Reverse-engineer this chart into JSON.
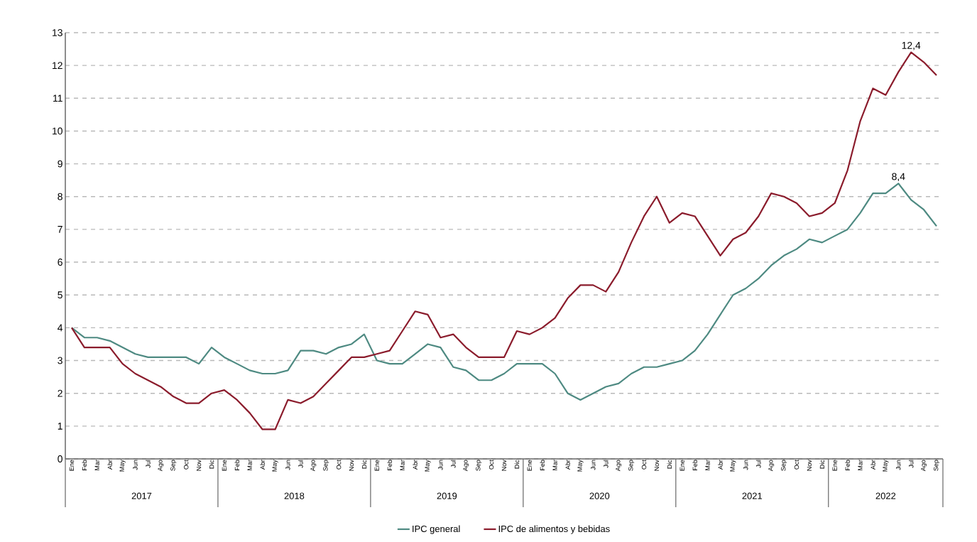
{
  "chart_data": {
    "type": "line",
    "categories": [
      "Ene",
      "Feb",
      "Mar",
      "Abr",
      "May",
      "Jun",
      "Jul",
      "Ago",
      "Sep",
      "Oct",
      "Nov",
      "Dic",
      "Ene",
      "Feb",
      "Mar",
      "Abr",
      "May",
      "Jun",
      "Jul",
      "Ago",
      "Sep",
      "Oct",
      "Nov",
      "Dic",
      "Ene",
      "Feb",
      "Mar",
      "Abr",
      "May",
      "Jun",
      "Jul",
      "Ago",
      "Sep",
      "Oct",
      "Nov",
      "Dic",
      "Ene",
      "Feb",
      "Mar",
      "Abr",
      "May",
      "Jun",
      "Jul",
      "Ago",
      "Sep",
      "Oct",
      "Nov",
      "Dic",
      "Ene",
      "Feb",
      "Mar",
      "Abr",
      "May",
      "Jun",
      "Jul",
      "Ago",
      "Sep",
      "Oct",
      "Nov",
      "Dic",
      "Ene",
      "Feb",
      "Mar",
      "Abr",
      "May",
      "Jun",
      "Jul",
      "Ago",
      "Sep"
    ],
    "series": [
      {
        "name": "IPC general",
        "color": "#4e8a82",
        "values": [
          4.0,
          3.7,
          3.7,
          3.6,
          3.4,
          3.2,
          3.1,
          3.1,
          3.1,
          3.1,
          2.9,
          3.4,
          3.1,
          2.9,
          2.7,
          2.6,
          2.6,
          2.7,
          3.3,
          3.3,
          3.2,
          3.4,
          3.5,
          3.8,
          3.0,
          2.9,
          2.9,
          3.2,
          3.5,
          3.4,
          2.8,
          2.7,
          2.4,
          2.4,
          2.6,
          2.9,
          2.9,
          2.9,
          2.6,
          2.0,
          1.8,
          2.0,
          2.2,
          2.3,
          2.6,
          2.8,
          2.8,
          2.9,
          3.0,
          3.3,
          3.8,
          4.4,
          5.0,
          5.2,
          5.5,
          5.9,
          6.2,
          6.4,
          6.7,
          6.6,
          6.8,
          7.0,
          7.5,
          8.1,
          8.1,
          8.4,
          7.9,
          7.6,
          7.1
        ],
        "value_labels": [
          null,
          null,
          null,
          null,
          null,
          null,
          null,
          null,
          null,
          null,
          null,
          null,
          null,
          null,
          null,
          null,
          null,
          null,
          null,
          null,
          null,
          null,
          null,
          null,
          null,
          null,
          null,
          null,
          null,
          null,
          null,
          null,
          null,
          null,
          null,
          null,
          null,
          null,
          null,
          null,
          null,
          null,
          null,
          null,
          null,
          null,
          null,
          null,
          null,
          null,
          null,
          null,
          null,
          null,
          null,
          null,
          null,
          null,
          null,
          null,
          null,
          null,
          null,
          null,
          null,
          "8,4",
          null,
          null,
          null
        ]
      },
      {
        "name": "IPC de alimentos y bebidas",
        "color": "#8b1c2c",
        "values": [
          4.0,
          3.4,
          3.4,
          3.4,
          2.9,
          2.6,
          2.4,
          2.2,
          1.9,
          1.7,
          1.7,
          2.0,
          2.1,
          1.8,
          1.4,
          0.9,
          0.9,
          1.8,
          1.7,
          1.9,
          2.3,
          2.7,
          3.1,
          3.1,
          3.2,
          3.3,
          3.9,
          4.5,
          4.4,
          3.7,
          3.8,
          3.4,
          3.1,
          3.1,
          3.1,
          3.9,
          3.8,
          4.0,
          4.3,
          4.9,
          5.3,
          5.3,
          5.1,
          5.7,
          6.6,
          7.4,
          8.0,
          7.2,
          7.5,
          7.4,
          6.8,
          6.2,
          6.7,
          6.9,
          7.4,
          8.1,
          8.0,
          7.8,
          7.4,
          7.5,
          7.8,
          8.8,
          10.3,
          11.3,
          11.1,
          11.8,
          12.4,
          12.1,
          11.7
        ],
        "value_labels": [
          null,
          null,
          null,
          null,
          null,
          null,
          null,
          null,
          null,
          null,
          null,
          null,
          null,
          null,
          null,
          null,
          null,
          null,
          null,
          null,
          null,
          null,
          null,
          null,
          null,
          null,
          null,
          null,
          null,
          null,
          null,
          null,
          null,
          null,
          null,
          null,
          null,
          null,
          null,
          null,
          null,
          null,
          null,
          null,
          null,
          null,
          null,
          null,
          null,
          null,
          null,
          null,
          null,
          null,
          null,
          null,
          null,
          null,
          null,
          null,
          null,
          null,
          null,
          null,
          null,
          null,
          "12,4",
          null,
          null
        ]
      }
    ],
    "annotations": [
      "2017",
      "2018",
      "2019",
      "2020",
      "2021",
      "2022"
    ],
    "ylim": [
      0,
      13
    ],
    "yticks": [
      0,
      1,
      2,
      3,
      4,
      5,
      6,
      7,
      8,
      9,
      10,
      11,
      12,
      13
    ],
    "grid": "y",
    "legend": "bottom",
    "marker": "none",
    "line_style": "solid"
  }
}
